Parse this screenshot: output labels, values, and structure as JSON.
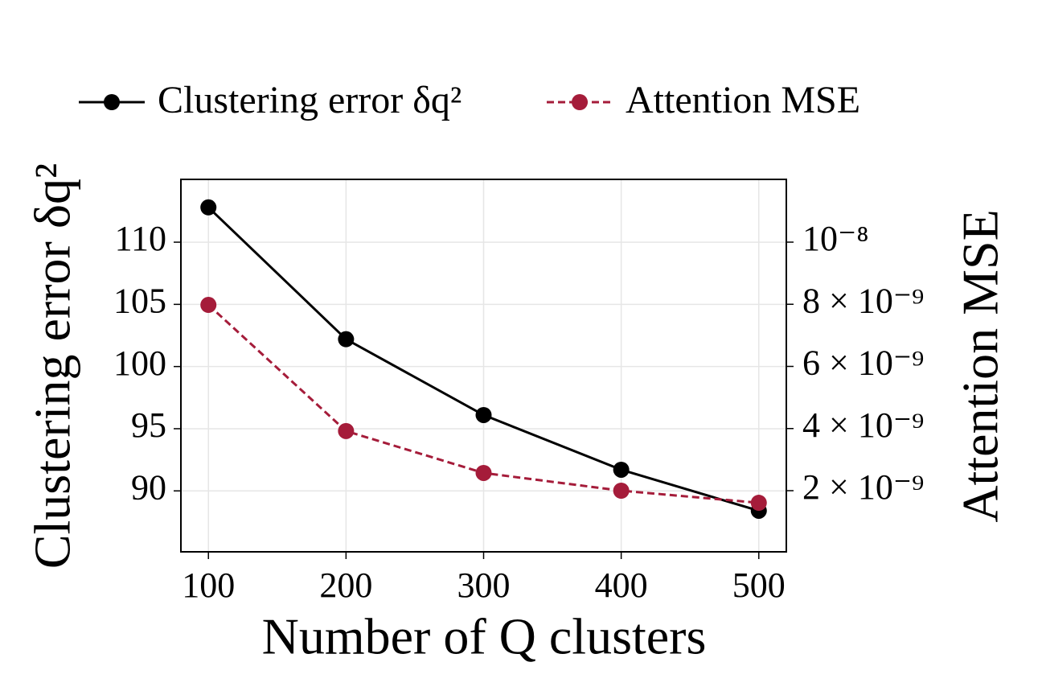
{
  "chart_data": {
    "type": "line",
    "x_label": "Number of Q clusters",
    "y_label": "Clustering error δq²",
    "y2_label": "Attention MSE",
    "x": [
      100,
      200,
      300,
      400,
      500
    ],
    "xlim": [
      80,
      520
    ],
    "xticks": [
      100,
      200,
      300,
      400,
      500
    ],
    "ylim": [
      85.1,
      115.05
    ],
    "yticks": [
      90,
      95,
      100,
      105,
      110
    ],
    "y2lim": [
      3.2e-11,
      1.202e-08
    ],
    "y2ticks": [
      {
        "value": 2e-09,
        "label": "2 × 10⁻⁹"
      },
      {
        "value": 4e-09,
        "label": "4 × 10⁻⁹"
      },
      {
        "value": 6e-09,
        "label": "6 × 10⁻⁹"
      },
      {
        "value": 8e-09,
        "label": "8 × 10⁻⁹"
      },
      {
        "value": 1e-08,
        "label": "10⁻⁸"
      }
    ],
    "grid": true,
    "legend": "upper center",
    "series": [
      {
        "name": "Clustering error δq²",
        "color": "#000000",
        "linestyle": "solid",
        "values": [
          112.8,
          102.2,
          96.1,
          91.7,
          88.4
        ]
      },
      {
        "name": "Attention MSE",
        "color": "#a51c3a",
        "linestyle": "dashed",
        "axis": "y2",
        "values": [
          7.98e-09,
          3.92e-09,
          2.57e-09,
          2e-09,
          1.61e-09
        ]
      }
    ]
  }
}
